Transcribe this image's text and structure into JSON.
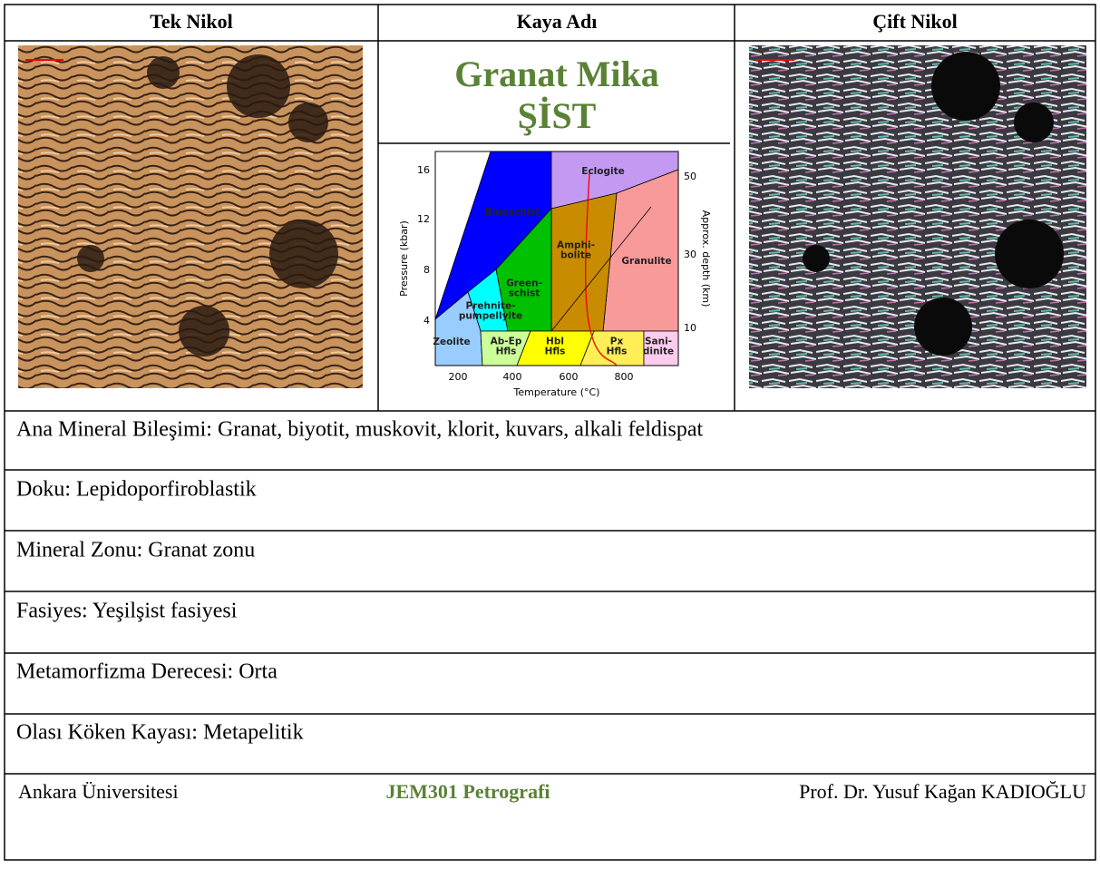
{
  "header": [
    "Tek Nikol",
    "Kaya Adı",
    "Çift Nikol"
  ],
  "rock_name": [
    "Granat Mika",
    "ŞİST"
  ],
  "diagram": {
    "x_label": "Temperature (°C)",
    "y_label": "Pressure (kbar)",
    "y2_label": "Approx. depth (km)",
    "x_ticks": [
      "200",
      "400",
      "600",
      "800"
    ],
    "y_ticks": [
      "4",
      "8",
      "12",
      "16"
    ],
    "y2_ticks": [
      "10",
      "30",
      "50"
    ],
    "facies": [
      [
        "Eclogite"
      ],
      [
        "Blueschist"
      ],
      [
        "Amphi-",
        "bolite"
      ],
      [
        "Granulite"
      ],
      [
        "Green-",
        "schist"
      ],
      [
        "Prehnite-",
        "pumpellyite"
      ],
      [
        "Zeolite"
      ],
      [
        "Ab-Ep",
        "Hfls"
      ],
      [
        "Hbl",
        "Hfls"
      ],
      [
        "Px",
        "Hfls"
      ],
      [
        "Sani-",
        "dinite"
      ]
    ]
  },
  "rows": [
    "Ana Mineral Bileşimi: Granat, biyotit, muskovit, klorit, kuvars, alkali feldispat",
    "Doku: Lepidoporfiroblastik",
    "Mineral Zonu: Granat zonu",
    "Fasiyes: Yeşilşist fasiyesi",
    "Metamorfizma Derecesi: Orta",
    "Olası Köken Kayası: Metapelitik"
  ],
  "footer": [
    "Ankara Üniversitesi",
    "JEM301 Petrografi",
    "Prof. Dr. Yusuf Kağan KADIOĞLU"
  ]
}
